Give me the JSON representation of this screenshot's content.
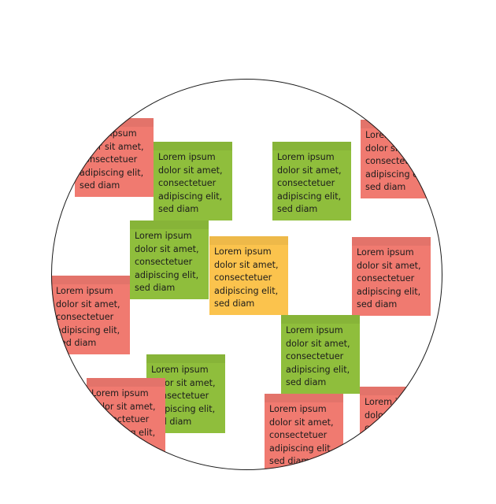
{
  "colors": {
    "green": "#8fbe3c",
    "red": "#f07a70",
    "yellow": "#fbc34d",
    "outline": "#1a1a1a"
  },
  "notes": [
    {
      "color": "red",
      "text": "Lorem ipsum\ndolor sit amet,\nconsectetuer\nadipiscing elit,\nsed diam"
    },
    {
      "color": "green",
      "text": "Lorem ipsum\ndolor sit amet,\nconsectetuer\nadipiscing elit,\nsed diam"
    },
    {
      "color": "green",
      "text": "Lorem ipsum\ndolor sit amet,\nconsectetuer\nadipiscing elit,\nsed diam"
    },
    {
      "color": "red",
      "text": "Lorem ipsum\ndolor sit amet,\nconsectetuer\nadipiscing elit,\nsed diam"
    },
    {
      "color": "green",
      "text": "Lorem ipsum\ndolor sit amet,\nconsectetuer\nadipiscing elit,\nsed diam"
    },
    {
      "color": "yellow",
      "text": "Lorem ipsum\ndolor sit amet,\nconsectetuer\nadipiscing elit,\nsed diam"
    },
    {
      "color": "red",
      "text": "Lorem ipsum\ndolor sit amet,\nconsectetuer\nadipiscing elit,\nsed diam"
    },
    {
      "color": "red",
      "text": "Lorem ipsum\ndolor sit amet,\nconsectetuer\nadipiscing elit,\nsed diam"
    },
    {
      "color": "green",
      "text": "Lorem ipsum\ndolor sit amet,\nconsectetuer\nadipiscing elit,\nsed diam"
    },
    {
      "color": "green",
      "text": "Lorem ipsum\ndolor sit amet,\nconsectetuer\nadipiscing elit,\nsed diam"
    },
    {
      "color": "red",
      "text": "Lorem ipsum\ndolor sit amet,\nconsectetuer\nadipiscing elit,\nsed diam"
    },
    {
      "color": "red",
      "text": "Lorem ipsum\ndolor sit amet,\nconsectetuer\nadipiscing elit,\nsed diam"
    },
    {
      "color": "red",
      "text": "Lorem ipsum\ndolor sit amet,\nconsectetuer\nadipiscing elit,\nsed diam"
    },
    {
      "color": "red",
      "text": "Lorem ipsum\ndolor sit amet,\nconsectetuer\nadipiscing elit,\nsed diam"
    }
  ]
}
